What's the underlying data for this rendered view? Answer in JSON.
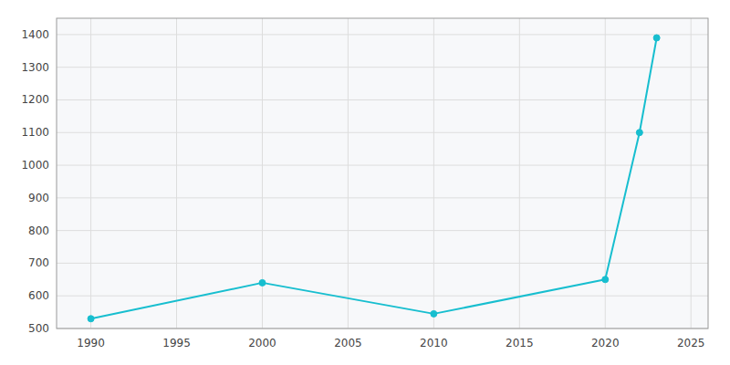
{
  "chart_data": {
    "type": "line",
    "x": [
      1990,
      2000,
      2010,
      2020,
      2022,
      2023
    ],
    "values": [
      530,
      640,
      545,
      650,
      1100,
      1390
    ],
    "color": "#17BECF",
    "marker": "circle",
    "xlim": [
      1988,
      2026
    ],
    "ylim": [
      500,
      1450
    ],
    "xticks": [
      1990,
      1995,
      2000,
      2005,
      2010,
      2015,
      2020,
      2025
    ],
    "yticks": [
      500,
      600,
      700,
      800,
      900,
      1000,
      1100,
      1200,
      1300,
      1400
    ],
    "grid": true
  }
}
